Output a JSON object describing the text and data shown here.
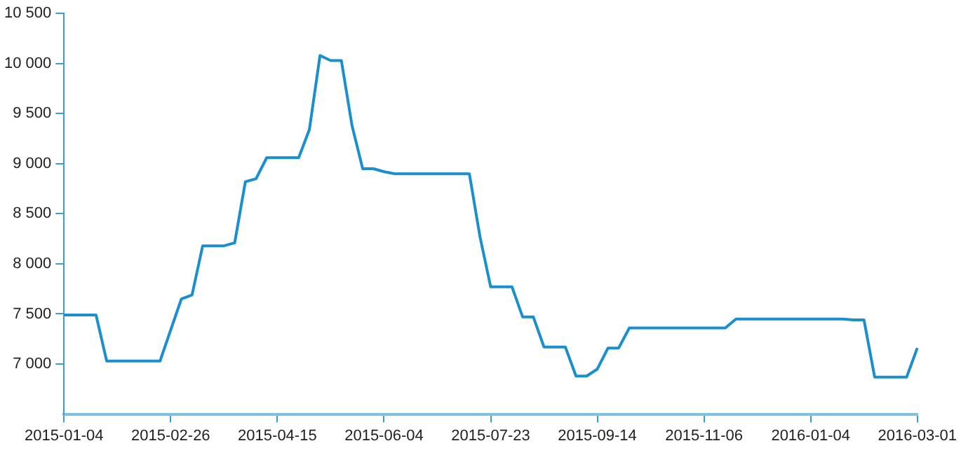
{
  "chart_data": {
    "type": "line",
    "categories": [
      "2015-01-04",
      null,
      null,
      null,
      null,
      null,
      null,
      null,
      null,
      null,
      "2015-02-26",
      null,
      null,
      null,
      null,
      null,
      null,
      null,
      null,
      null,
      "2015-04-15",
      null,
      null,
      null,
      null,
      null,
      null,
      null,
      null,
      null,
      "2015-06-04",
      null,
      null,
      null,
      null,
      null,
      null,
      null,
      null,
      null,
      "2015-07-23",
      null,
      null,
      null,
      null,
      null,
      null,
      null,
      null,
      null,
      "2015-09-14",
      null,
      null,
      null,
      null,
      null,
      null,
      null,
      null,
      null,
      "2015-11-06",
      null,
      null,
      null,
      null,
      null,
      null,
      null,
      null,
      null,
      "2016-01-04",
      null,
      null,
      null,
      null,
      null,
      null,
      null,
      null,
      null,
      "2016-03-01"
    ],
    "series": [
      {
        "color": "#1a8fd0",
        "values": [
          7490,
          7490,
          7490,
          7490,
          7030,
          7030,
          7030,
          7030,
          7030,
          7030,
          7340,
          7650,
          7690,
          8180,
          8180,
          8180,
          8210,
          8820,
          8850,
          9060,
          9060,
          9060,
          9060,
          9340,
          10080,
          10030,
          10030,
          9380,
          8950,
          8950,
          8920,
          8900,
          8900,
          8900,
          8900,
          8900,
          8900,
          8900,
          8900,
          8270,
          7770,
          7770,
          7770,
          7470,
          7470,
          7170,
          7170,
          7170,
          6880,
          6880,
          6950,
          7160,
          7160,
          7360,
          7360,
          7360,
          7360,
          7360,
          7360,
          7360,
          7360,
          7360,
          7360,
          7450,
          7450,
          7450,
          7450,
          7450,
          7450,
          7450,
          7450,
          7450,
          7450,
          7450,
          7440,
          7440,
          6870,
          6870,
          6870,
          6870,
          7160
        ]
      }
    ],
    "ylim": [
      6500,
      10500
    ],
    "yticks": [
      {
        "value": 7000,
        "label": "7 000"
      },
      {
        "value": 7500,
        "label": "7 500"
      },
      {
        "value": 8000,
        "label": "8 000"
      },
      {
        "value": 8500,
        "label": "8 500"
      },
      {
        "value": 9000,
        "label": "9 000"
      },
      {
        "value": 9500,
        "label": "9 500"
      },
      {
        "value": 10000,
        "label": "10 000"
      },
      {
        "value": 10500,
        "label": "10 500"
      }
    ],
    "grid": false,
    "legend": false,
    "marker": "none",
    "line_style": "solid"
  }
}
